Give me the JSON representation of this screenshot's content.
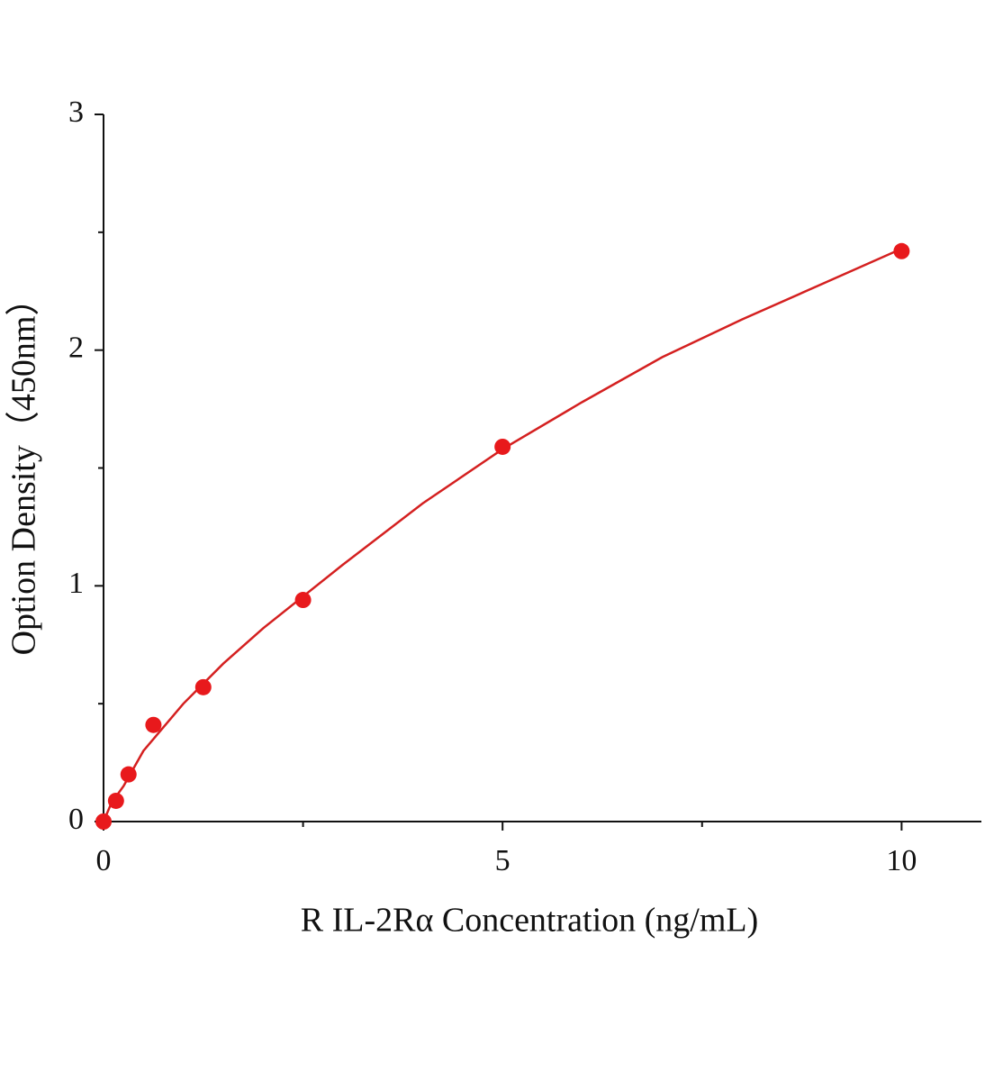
{
  "chart_data": {
    "type": "scatter",
    "xlabel": "R IL-2Rα Concentration (ng/mL)",
    "ylabel": "Option Density（450nm）",
    "xlim": [
      0,
      11
    ],
    "ylim": [
      0,
      3
    ],
    "xticks": [
      0,
      5,
      10
    ],
    "yticks": [
      0,
      1,
      2,
      3
    ],
    "xminorticks": [
      2.5,
      7.5
    ],
    "yminorticks": [
      0.5,
      1.5,
      2.5
    ],
    "series": [
      {
        "type": "scatter",
        "color": "#e8191c",
        "x": [
          0,
          0.156,
          0.313,
          0.625,
          1.25,
          2.5,
          5,
          10
        ],
        "values": [
          0.0,
          0.088,
          0.2,
          0.41,
          0.57,
          0.94,
          1.59,
          2.42
        ]
      },
      {
        "type": "line",
        "color": "#d42020",
        "x": [
          0,
          0.1,
          0.25,
          0.5,
          1,
          1.5,
          2,
          3,
          4,
          5,
          6,
          7,
          8,
          9,
          10
        ],
        "values": [
          0,
          0.08,
          0.15,
          0.3,
          0.5,
          0.67,
          0.82,
          1.09,
          1.35,
          1.58,
          1.78,
          1.97,
          2.13,
          2.28,
          2.43
        ]
      }
    ]
  }
}
